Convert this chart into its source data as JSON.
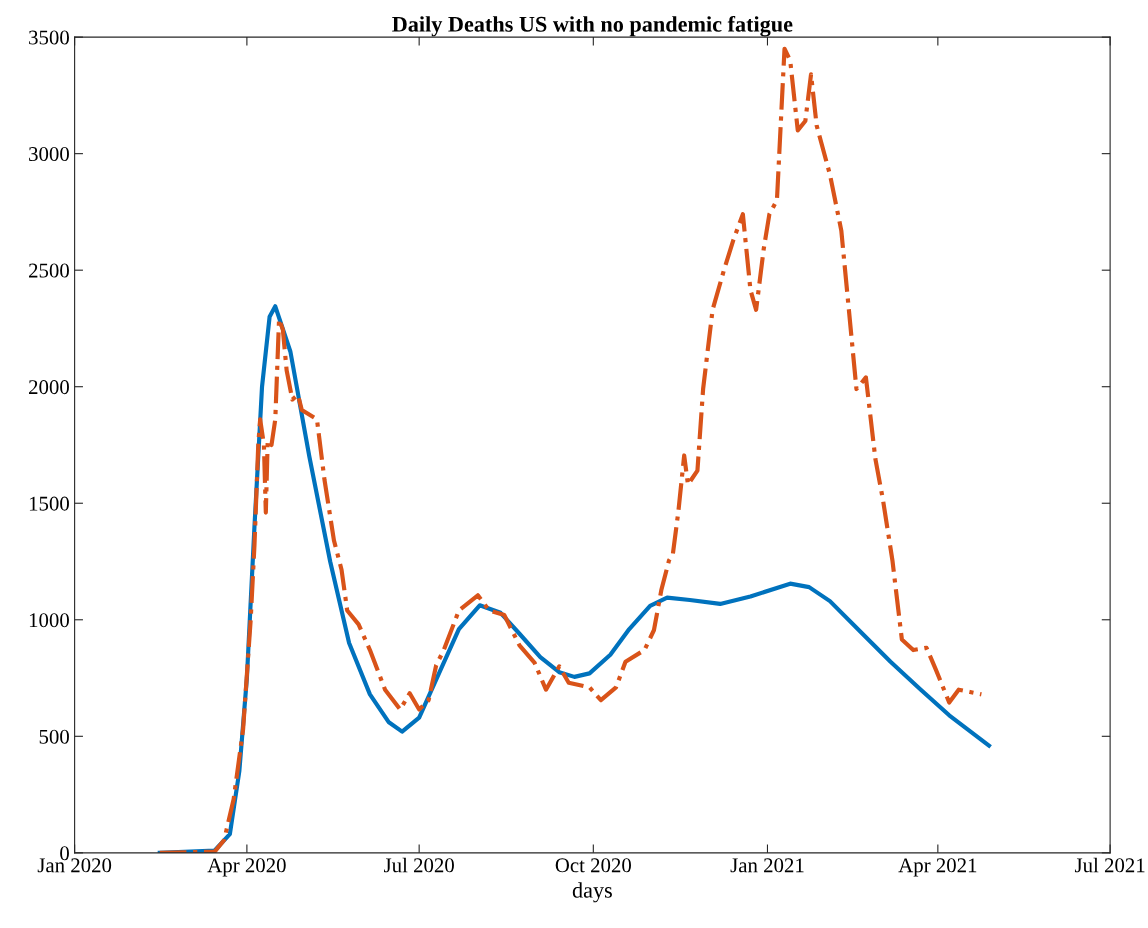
{
  "chart_data": {
    "type": "line",
    "title": "Daily Deaths US with no pandemic fatigue",
    "xlabel": "days",
    "xlim": [
      "2020-01-01",
      "2021-07-01"
    ],
    "xticks": [
      {
        "value": "2020-01-01",
        "label": "Jan 2020"
      },
      {
        "value": "2020-04-01",
        "label": "Apr 2020"
      },
      {
        "value": "2020-07-01",
        "label": "Jul 2020"
      },
      {
        "value": "2020-10-01",
        "label": "Oct 2020"
      },
      {
        "value": "2021-01-01",
        "label": "Jan 2021"
      },
      {
        "value": "2021-04-01",
        "label": "Apr 2021"
      },
      {
        "value": "2021-07-01",
        "label": "Jul 2021"
      }
    ],
    "ylim": [
      0,
      3500
    ],
    "yticks": [
      0,
      500,
      1000,
      1500,
      2000,
      2500,
      3000,
      3500
    ],
    "grid": false,
    "legend": false,
    "series": [
      {
        "color": "#0072bd",
        "line_style": "solid",
        "x": [
          "2020-02-15",
          "2020-03-15",
          "2020-03-23",
          "2020-03-28",
          "2020-04-01",
          "2020-04-05",
          "2020-04-09",
          "2020-04-13",
          "2020-04-16",
          "2020-04-24",
          "2020-05-04",
          "2020-05-15",
          "2020-05-25",
          "2020-06-05",
          "2020-06-15",
          "2020-06-22",
          "2020-07-01",
          "2020-07-12",
          "2020-07-22",
          "2020-08-02",
          "2020-08-13",
          "2020-08-23",
          "2020-09-03",
          "2020-09-13",
          "2020-09-21",
          "2020-09-29",
          "2020-10-10",
          "2020-10-20",
          "2020-10-31",
          "2020-11-09",
          "2020-11-21",
          "2020-12-07",
          "2020-12-23",
          "2021-01-13",
          "2021-01-23",
          "2021-02-03",
          "2021-02-19",
          "2021-03-07",
          "2021-03-23",
          "2021-04-07",
          "2021-04-28"
        ],
        "values": [
          0,
          10,
          80,
          350,
          750,
          1400,
          2000,
          2300,
          2345,
          2150,
          1700,
          1250,
          900,
          680,
          560,
          520,
          580,
          780,
          960,
          1062,
          1030,
          940,
          840,
          775,
          755,
          770,
          850,
          960,
          1060,
          1095,
          1085,
          1068,
          1100,
          1155,
          1140,
          1080,
          950,
          820,
          700,
          590,
          460
        ]
      },
      {
        "color": "#d95319",
        "line_style": "dashdot",
        "x": [
          "2020-02-15",
          "2020-03-15",
          "2020-03-20",
          "2020-03-25",
          "2020-03-30",
          "2020-04-03",
          "2020-04-05",
          "2020-04-07",
          "2020-04-08",
          "2020-04-10",
          "2020-04-11",
          "2020-04-12",
          "2020-04-14",
          "2020-04-16",
          "2020-04-18",
          "2020-04-20",
          "2020-04-22",
          "2020-04-25",
          "2020-04-28",
          "2020-04-30",
          "2020-05-08",
          "2020-05-12",
          "2020-05-17",
          "2020-05-21",
          "2020-05-24",
          "2020-05-30",
          "2020-06-05",
          "2020-06-13",
          "2020-06-21",
          "2020-06-26",
          "2020-07-01",
          "2020-07-06",
          "2020-07-10",
          "2020-07-14",
          "2020-07-22",
          "2020-08-01",
          "2020-08-07",
          "2020-08-15",
          "2020-08-23",
          "2020-08-31",
          "2020-09-06",
          "2020-09-13",
          "2020-09-18",
          "2020-09-29",
          "2020-10-05",
          "2020-10-13",
          "2020-10-18",
          "2020-10-28",
          "2020-11-02",
          "2020-11-06",
          "2020-11-10",
          "2020-11-12",
          "2020-11-15",
          "2020-11-18",
          "2020-11-20",
          "2020-11-25",
          "2020-11-28",
          "2020-12-03",
          "2020-12-09",
          "2020-12-14",
          "2020-12-19",
          "2020-12-23",
          "2020-12-26",
          "2020-12-30",
          "2021-01-02",
          "2021-01-06",
          "2021-01-10",
          "2021-01-13",
          "2021-01-17",
          "2021-01-21",
          "2021-01-24",
          "2021-01-27",
          "2021-02-03",
          "2021-02-09",
          "2021-02-13",
          "2021-02-17",
          "2021-02-22",
          "2021-02-27",
          "2021-03-03",
          "2021-03-08",
          "2021-03-13",
          "2021-03-19",
          "2021-03-26",
          "2021-03-31",
          "2021-04-07",
          "2021-04-12",
          "2021-04-18",
          "2021-04-24"
        ],
        "values": [
          0,
          5,
          55,
          230,
          530,
          1000,
          1320,
          1750,
          1860,
          1750,
          1460,
          1770,
          1750,
          1860,
          2290,
          2245,
          2070,
          1945,
          1965,
          1900,
          1860,
          1600,
          1340,
          1215,
          1040,
          980,
          870,
          700,
          615,
          685,
          615,
          655,
          805,
          870,
          1040,
          1105,
          1040,
          1020,
          890,
          815,
          700,
          800,
          730,
          710,
          655,
          710,
          820,
          870,
          955,
          1130,
          1255,
          1280,
          1470,
          1705,
          1580,
          1640,
          1990,
          2330,
          2500,
          2630,
          2740,
          2415,
          2330,
          2590,
          2740,
          2800,
          3450,
          3400,
          3100,
          3140,
          3340,
          3120,
          2910,
          2670,
          2330,
          1990,
          2040,
          1690,
          1515,
          1255,
          915,
          870,
          880,
          785,
          645,
          700,
          690,
          680
        ]
      }
    ]
  }
}
